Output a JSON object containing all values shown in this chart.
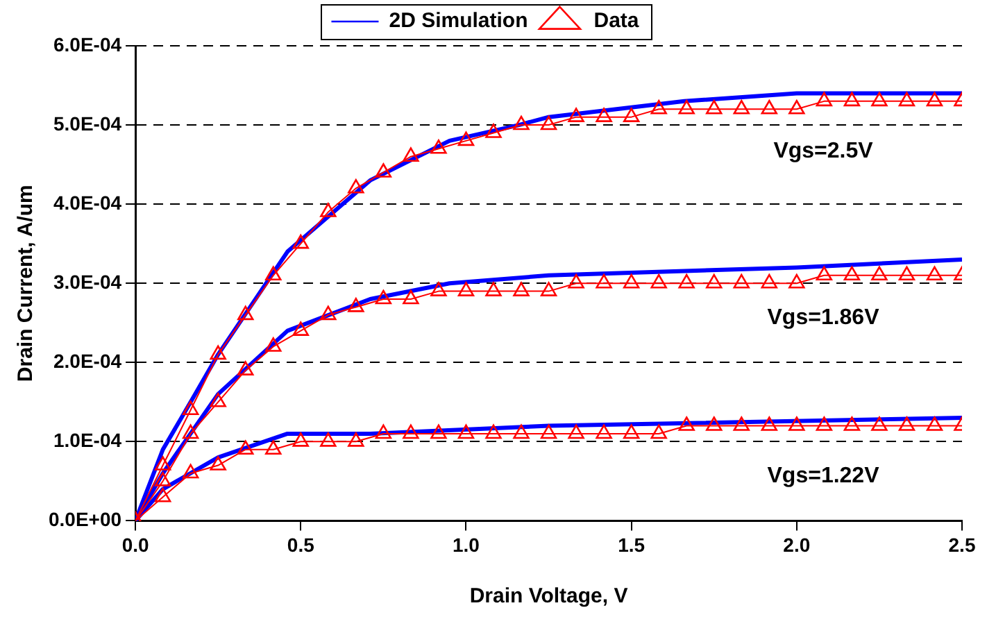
{
  "chart_data": {
    "type": "line",
    "xlabel": "Drain Voltage, V",
    "ylabel": "Drain Current, A/um",
    "xlim": [
      0,
      2.5
    ],
    "xticks": [
      {
        "value": 0,
        "label": "0.0"
      },
      {
        "value": 0.5,
        "label": "0.5"
      },
      {
        "value": 1,
        "label": "1.0"
      },
      {
        "value": 1.5,
        "label": "1.5"
      },
      {
        "value": 2,
        "label": "2.0"
      },
      {
        "value": 2.5,
        "label": "2.5"
      }
    ],
    "ylim": [
      0,
      0.0006
    ],
    "yticks": [
      {
        "value": 0,
        "label": "0.0E+00"
      },
      {
        "value": 0.0001,
        "label": "1.0E-04"
      },
      {
        "value": 0.0002,
        "label": "2.0E-04"
      },
      {
        "value": 0.0003,
        "label": "3.0E-04"
      },
      {
        "value": 0.0004,
        "label": "4.0E-04"
      },
      {
        "value": 0.0005,
        "label": "5.0E-04"
      },
      {
        "value": 0.0006,
        "label": "6.0E-04"
      }
    ],
    "grid": "y",
    "legend": "top",
    "series": [
      {
        "name": "2D Simulation",
        "marker": "none",
        "color": "#0000ff",
        "x": [
          0,
          0.083,
          0.167,
          0.25,
          0.46,
          0.71,
          0.95,
          1.16,
          1.25,
          1.66,
          2.0,
          2.5
        ],
        "values": [
          0,
          9e-05,
          0.00015,
          0.00021,
          0.00034,
          0.00043,
          0.00048,
          0.0005,
          0.00051,
          0.00053,
          0.00054,
          0.00054
        ]
      },
      {
        "marker": "none",
        "color": "#0000ff",
        "x": [
          0,
          0.083,
          0.25,
          0.46,
          0.71,
          0.95,
          1.25,
          2.0,
          2.5
        ],
        "values": [
          0,
          6e-05,
          0.00016,
          0.00024,
          0.00028,
          0.0003,
          0.00031,
          0.00032,
          0.00033
        ]
      },
      {
        "marker": "none",
        "color": "#0000ff",
        "x": [
          0,
          0.083,
          0.25,
          0.46,
          0.71,
          1.25,
          2.5
        ],
        "values": [
          0,
          4e-05,
          8e-05,
          0.00011,
          0.00011,
          0.00012,
          0.00013
        ]
      },
      {
        "name": "Data",
        "marker": "triangle",
        "color": "#ff0000",
        "x": [
          0,
          0.083,
          0.167,
          0.25,
          0.333,
          0.417,
          0.5,
          0.583,
          0.667,
          0.75,
          0.833,
          0.917,
          1.0,
          1.083,
          1.167,
          1.25,
          1.333,
          1.417,
          1.5,
          1.583,
          1.667,
          1.75,
          1.833,
          1.917,
          2.0,
          2.083,
          2.167,
          2.25,
          2.333,
          2.417,
          2.5
        ],
        "values": [
          0,
          7e-05,
          0.00014,
          0.00021,
          0.00026,
          0.00031,
          0.00035,
          0.00039,
          0.00042,
          0.00044,
          0.00046,
          0.00047,
          0.00048,
          0.00049,
          0.0005,
          0.0005,
          0.00051,
          0.00051,
          0.00051,
          0.00052,
          0.00052,
          0.00052,
          0.00052,
          0.00052,
          0.00052,
          0.00053,
          0.00053,
          0.00053,
          0.00053,
          0.00053,
          0.00053
        ]
      },
      {
        "marker": "triangle",
        "color": "#ff0000",
        "x": [
          0,
          0.083,
          0.167,
          0.25,
          0.333,
          0.417,
          0.5,
          0.583,
          0.667,
          0.75,
          0.833,
          0.917,
          1.0,
          1.083,
          1.167,
          1.25,
          1.333,
          1.417,
          1.5,
          1.583,
          1.667,
          1.75,
          1.833,
          1.917,
          2.0,
          2.083,
          2.167,
          2.25,
          2.333,
          2.417,
          2.5
        ],
        "values": [
          0,
          5e-05,
          0.00011,
          0.00015,
          0.00019,
          0.00022,
          0.00024,
          0.00026,
          0.00027,
          0.00028,
          0.00028,
          0.00029,
          0.00029,
          0.00029,
          0.00029,
          0.00029,
          0.0003,
          0.0003,
          0.0003,
          0.0003,
          0.0003,
          0.0003,
          0.0003,
          0.0003,
          0.0003,
          0.00031,
          0.00031,
          0.00031,
          0.00031,
          0.00031,
          0.00031
        ]
      },
      {
        "marker": "triangle",
        "color": "#ff0000",
        "x": [
          0,
          0.083,
          0.167,
          0.25,
          0.333,
          0.417,
          0.5,
          0.583,
          0.667,
          0.75,
          0.833,
          0.917,
          1.0,
          1.083,
          1.167,
          1.25,
          1.333,
          1.417,
          1.5,
          1.583,
          1.667,
          1.75,
          1.833,
          1.917,
          2.0,
          2.083,
          2.167,
          2.25,
          2.333,
          2.417,
          2.5
        ],
        "values": [
          0,
          3e-05,
          6e-05,
          7e-05,
          9e-05,
          9e-05,
          0.0001,
          0.0001,
          0.0001,
          0.00011,
          0.00011,
          0.00011,
          0.00011,
          0.00011,
          0.00011,
          0.00011,
          0.00011,
          0.00011,
          0.00011,
          0.00011,
          0.00012,
          0.00012,
          0.00012,
          0.00012,
          0.00012,
          0.00012,
          0.00012,
          0.00012,
          0.00012,
          0.00012,
          0.00012
        ]
      }
    ],
    "annotations": [
      "Vgs=2.5V",
      "Vgs=1.86V",
      "Vgs=1.22V"
    ]
  }
}
